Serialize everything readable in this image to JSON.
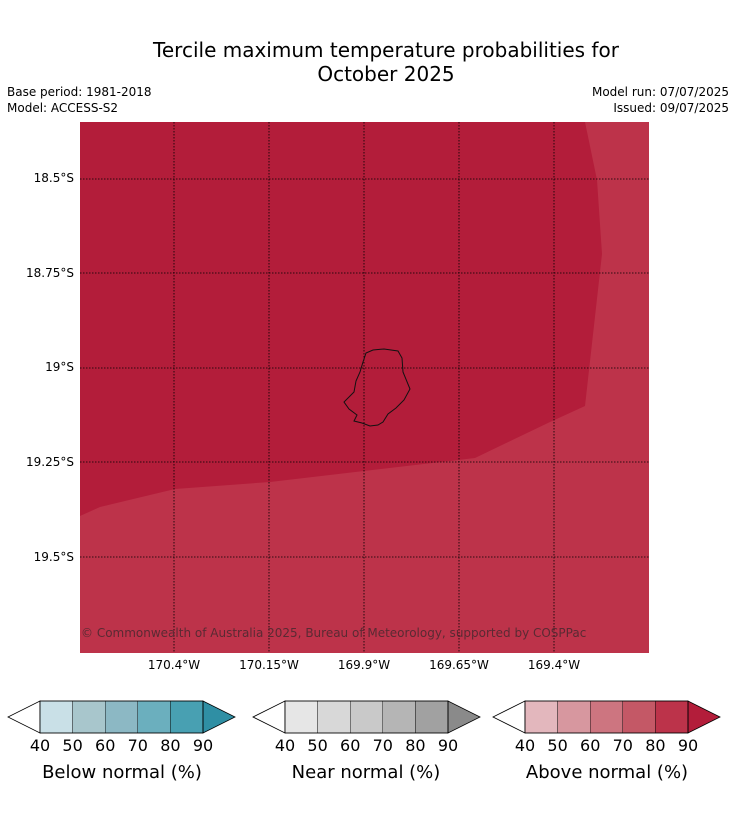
{
  "title_line1": "Tercile maximum temperature probabilities for",
  "title_line2": "October 2025",
  "base_period": "Base period: 1981-2018",
  "model": "Model: ACCESS-S2",
  "model_run": "Model run: 07/07/2025",
  "issued": "Issued: 09/07/2025",
  "copyright": "© Commonwealth of Australia 2025, Bureau of Meteorology, supported by COSPPac",
  "map": {
    "lat_labels": [
      "18.5°S",
      "18.75°S",
      "19°S",
      "19.25°S",
      "19.5°S"
    ],
    "lon_labels": [
      "170.4°W",
      "170.15°W",
      "169.9°W",
      "169.65°W",
      "169.4°W"
    ],
    "colors": {
      "above_90": "#b31d3a",
      "above_80": "#bd334a"
    }
  },
  "colorbars": [
    {
      "label": "Below normal (%)",
      "ticks": [
        "40",
        "50",
        "60",
        "70",
        "80",
        "90"
      ],
      "colors": [
        "#c9e0e7",
        "#a8c6cc",
        "#8cb8c4",
        "#6bafbe",
        "#48a0b2",
        "#2f8fa4"
      ]
    },
    {
      "label": "Near normal (%)",
      "ticks": [
        "40",
        "50",
        "60",
        "70",
        "80",
        "90"
      ],
      "colors": [
        "#e6e6e6",
        "#d8d8d8",
        "#c9c9c9",
        "#b5b5b5",
        "#a1a1a1",
        "#8a8a8a"
      ]
    },
    {
      "label": "Above normal (%)",
      "ticks": [
        "40",
        "50",
        "60",
        "70",
        "80",
        "90"
      ],
      "colors": [
        "#e3b7bd",
        "#d7979f",
        "#cd7580",
        "#c45866",
        "#bc334a",
        "#b31d3a"
      ]
    }
  ]
}
